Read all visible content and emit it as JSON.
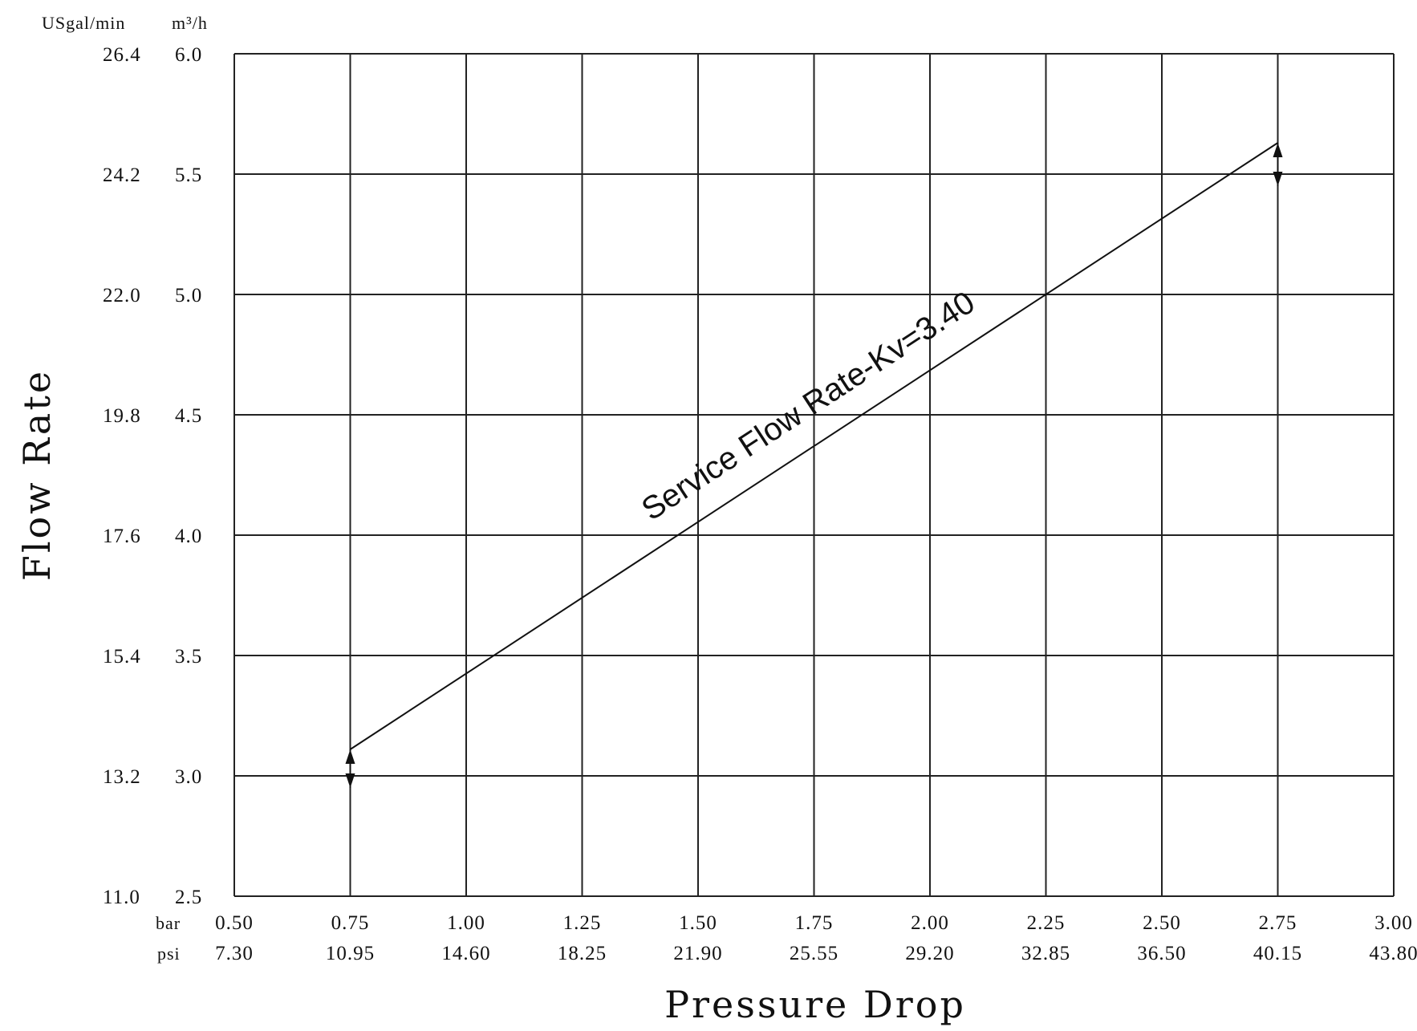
{
  "chart_data": {
    "type": "line",
    "xlabel": "Pressure Drop",
    "ylabel": "Flow Rate",
    "x_unit_primary": "bar",
    "x_unit_secondary": "psi",
    "y_unit_primary": "m³/h",
    "y_unit_secondary": "USgal/min",
    "xlim": [
      0.5,
      3.0
    ],
    "ylim": [
      2.5,
      6.0
    ],
    "x_ticks": [
      "0.50",
      "0.75",
      "1.00",
      "1.25",
      "1.50",
      "1.75",
      "2.00",
      "2.25",
      "2.50",
      "2.75",
      "3.00"
    ],
    "x_ticks_secondary": [
      "7.30",
      "10.95",
      "14.60",
      "18.25",
      "21.90",
      "25.55",
      "29.20",
      "32.85",
      "36.50",
      "40.15",
      "43.80"
    ],
    "y_ticks": [
      "2.5",
      "3.0",
      "3.5",
      "4.0",
      "4.5",
      "5.0",
      "5.5",
      "6.0"
    ],
    "y_ticks_secondary": [
      "11.0",
      "13.2",
      "15.4",
      "17.6",
      "19.8",
      "22.0",
      "24.2",
      "26.4"
    ],
    "grid": true,
    "series": [
      {
        "name": "Service Flow Rate-Kv=3.40",
        "x": [
          0.75,
          2.75
        ],
        "y": [
          3.11,
          5.63
        ]
      }
    ],
    "range_markers": [
      {
        "x": 0.75,
        "y_top": 3.11,
        "y_bottom": 2.95
      },
      {
        "x": 2.75,
        "y_top": 5.63,
        "y_bottom": 5.45
      }
    ],
    "annotation": "Service Flow Rate-Kv=3.40"
  }
}
